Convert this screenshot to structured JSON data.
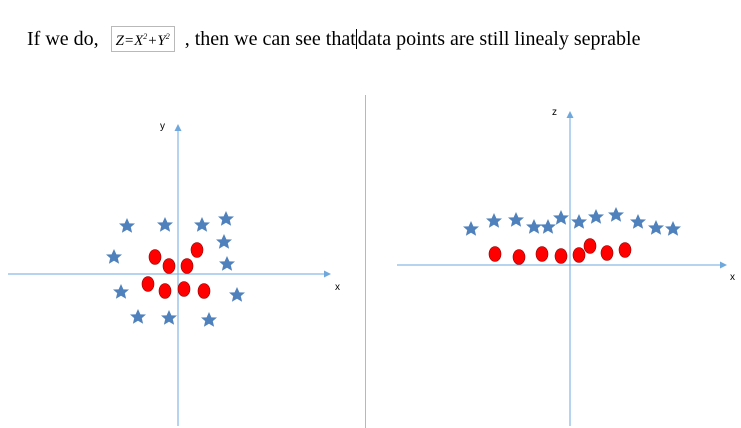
{
  "text_line": {
    "prefix": "If we do,",
    "formula": "Z=X²+Y²",
    "after_formula": ", then we can see that",
    "after_cursor": "data points are still linealy seprable"
  },
  "left_plot": {
    "x_label": "x",
    "y_label": "y",
    "colors": {
      "star": "#4f81bd",
      "circle": "#ff0000",
      "axis": "#6fa8dc"
    }
  },
  "right_plot": {
    "x_label": "x",
    "z_label": "z",
    "colors": {
      "star": "#4f81bd",
      "circle": "#ff0000",
      "axis": "#6fa8dc"
    }
  }
}
